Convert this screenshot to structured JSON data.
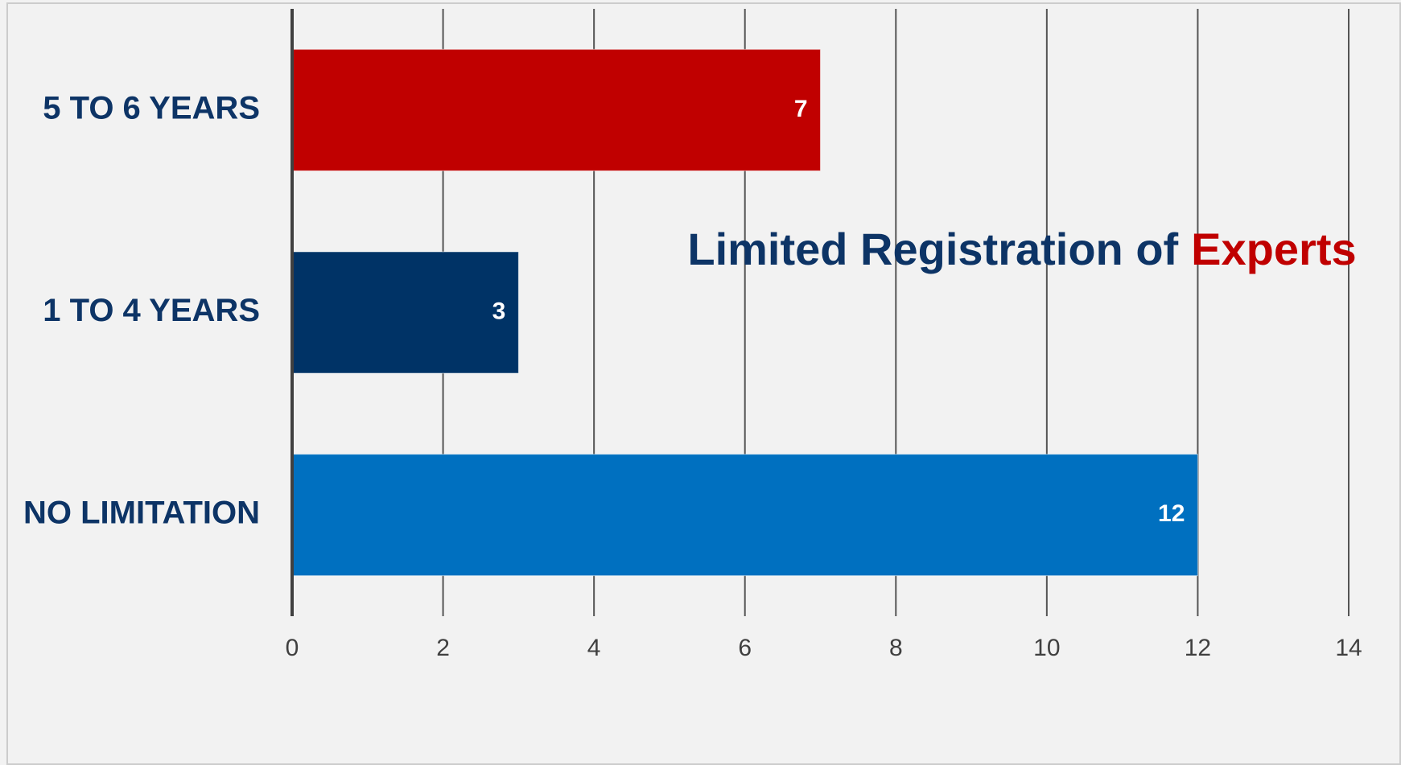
{
  "chart_data": {
    "type": "bar",
    "orientation": "horizontal",
    "title_parts": [
      {
        "text": "Limited Registration of",
        "color": "#0d3466"
      },
      {
        "text": "Experts",
        "color": "#c00000"
      }
    ],
    "categories": [
      "5 TO 6 YEARS",
      "1 TO 4 YEARS",
      "NO LIMITATION"
    ],
    "values": [
      7,
      3,
      12
    ],
    "colors": [
      "#c00000",
      "#003366",
      "#0070c0"
    ],
    "xlim": [
      0,
      14
    ],
    "xticks": [
      0,
      2,
      4,
      6,
      8,
      10,
      12,
      14
    ],
    "grid": true
  }
}
